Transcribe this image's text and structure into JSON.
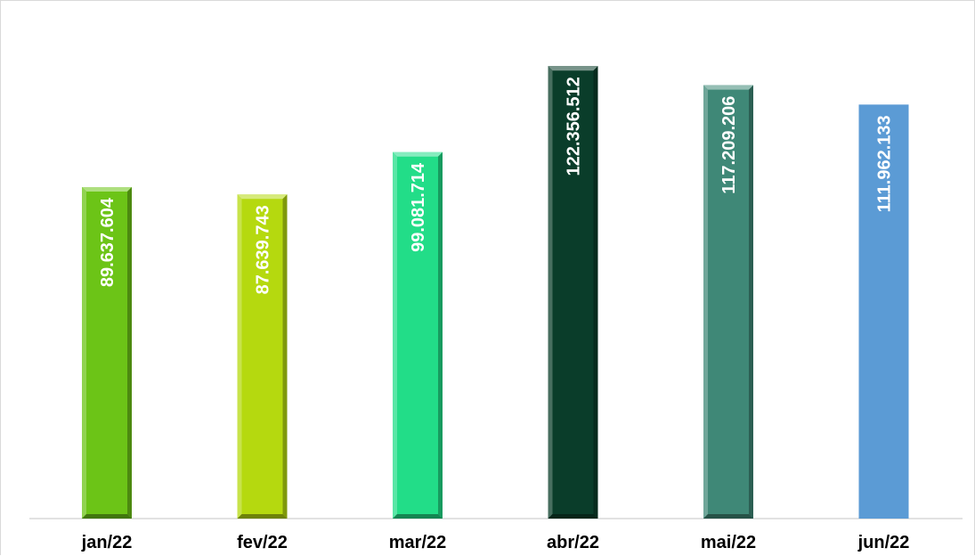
{
  "chart_data": {
    "type": "bar",
    "title": "",
    "xlabel": "",
    "ylabel": "",
    "categories": [
      "jan/22",
      "fev/22",
      "mar/22",
      "abr/22",
      "mai/22",
      "jun/22"
    ],
    "values": [
      89637604,
      87639743,
      99081714,
      122356512,
      117209206,
      111962133
    ],
    "data_labels": [
      "89.637.604",
      "87.639.743",
      "99.081.714",
      "122.356.512",
      "117.209.206",
      "111.962.133"
    ],
    "colors": [
      "#6cc417",
      "#b5d90f",
      "#22dd88",
      "#0a3d2a",
      "#3f8877",
      "#5b9bd5"
    ],
    "beveled": [
      true,
      true,
      true,
      true,
      true,
      false
    ],
    "ylim": [
      0,
      140000000
    ],
    "grid": false,
    "legend": "none"
  }
}
